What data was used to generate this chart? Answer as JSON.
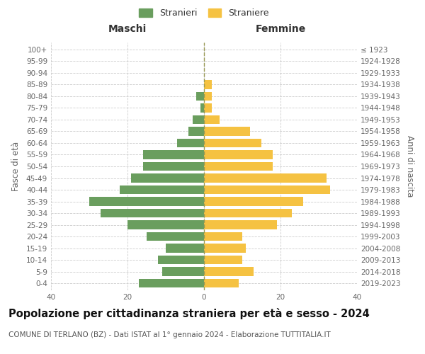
{
  "age_groups": [
    "0-4",
    "5-9",
    "10-14",
    "15-19",
    "20-24",
    "25-29",
    "30-34",
    "35-39",
    "40-44",
    "45-49",
    "50-54",
    "55-59",
    "60-64",
    "65-69",
    "70-74",
    "75-79",
    "80-84",
    "85-89",
    "90-94",
    "95-99",
    "100+"
  ],
  "birth_years": [
    "2019-2023",
    "2014-2018",
    "2009-2013",
    "2004-2008",
    "1999-2003",
    "1994-1998",
    "1989-1993",
    "1984-1988",
    "1979-1983",
    "1974-1978",
    "1969-1973",
    "1964-1968",
    "1959-1963",
    "1954-1958",
    "1949-1953",
    "1944-1948",
    "1939-1943",
    "1934-1938",
    "1929-1933",
    "1924-1928",
    "≤ 1923"
  ],
  "males": [
    17,
    11,
    12,
    10,
    15,
    20,
    27,
    30,
    22,
    19,
    16,
    16,
    7,
    4,
    3,
    1,
    2,
    0,
    0,
    0,
    0
  ],
  "females": [
    9,
    13,
    10,
    11,
    10,
    19,
    23,
    26,
    33,
    32,
    18,
    18,
    15,
    12,
    4,
    2,
    2,
    2,
    0,
    0,
    0
  ],
  "male_color": "#6a9e5e",
  "female_color": "#f5c242",
  "bar_height": 0.75,
  "xlim": 40,
  "title": "Popolazione per cittadinanza straniera per età e sesso - 2024",
  "subtitle": "COMUNE DI TERLANO (BZ) - Dati ISTAT al 1° gennaio 2024 - Elaborazione TUTTITALIA.IT",
  "ylabel_left": "Fasce di età",
  "ylabel_right": "Anni di nascita",
  "xlabel_left": "Maschi",
  "xlabel_right": "Femmine",
  "legend_stranieri": "Stranieri",
  "legend_straniere": "Straniere",
  "grid_color": "#cccccc",
  "background_color": "#ffffff",
  "title_fontsize": 10.5,
  "subtitle_fontsize": 7.5,
  "tick_fontsize": 7.5,
  "label_fontsize": 8.5
}
